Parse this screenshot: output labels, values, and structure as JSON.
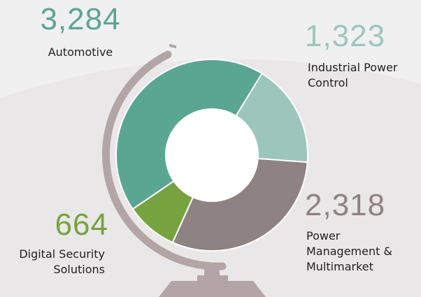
{
  "chart_data": {
    "type": "donut",
    "categories": [
      "Automotive",
      "Industrial Power Control",
      "Power Management & Multimarket",
      "Digital Security Solutions"
    ],
    "values": [
      3284,
      1323,
      2318,
      664
    ],
    "value_labels": [
      "3,284",
      "1,323",
      "2,318",
      "664"
    ],
    "colors": [
      "#5ba593",
      "#9cc6bb",
      "#8f8282",
      "#76a33f"
    ]
  }
}
